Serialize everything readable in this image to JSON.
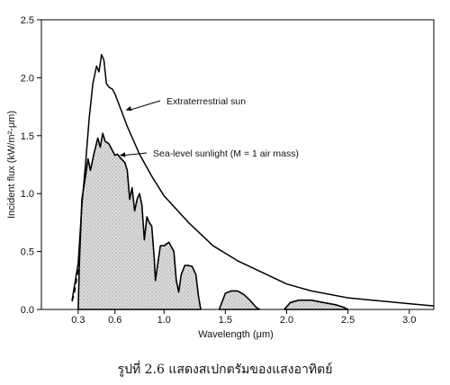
{
  "chart_data": {
    "type": "area",
    "ylabel": "Incident flux (kW/m²-μm)",
    "xlabel": "Wavelength (μm)",
    "xlim": [
      0.0,
      3.2
    ],
    "ylim": [
      0.0,
      2.5
    ],
    "xticks": [
      0.3,
      0.6,
      1.0,
      1.5,
      2.0,
      2.5,
      3.0
    ],
    "xtick_labels": [
      "0.3",
      "0.6",
      "1.0",
      "1.5",
      "2.0",
      "2.5",
      "3.0"
    ],
    "yticks": [
      0.0,
      0.5,
      1.0,
      1.5,
      2.0,
      2.5
    ],
    "ytick_labels": [
      "0.0",
      "0.5",
      "1.0",
      "1.5",
      "2.0",
      "2.5"
    ],
    "grid": false,
    "series": [
      {
        "name": "Extraterrestrial sun",
        "style": "line",
        "color": "#000000",
        "points": [
          [
            0.25,
            0.08
          ],
          [
            0.3,
            0.4
          ],
          [
            0.33,
            0.9
          ],
          [
            0.36,
            1.25
          ],
          [
            0.39,
            1.65
          ],
          [
            0.42,
            1.95
          ],
          [
            0.45,
            2.1
          ],
          [
            0.47,
            2.05
          ],
          [
            0.49,
            2.2
          ],
          [
            0.51,
            2.15
          ],
          [
            0.53,
            1.95
          ],
          [
            0.55,
            1.92
          ],
          [
            0.58,
            1.9
          ],
          [
            0.6,
            1.86
          ],
          [
            0.65,
            1.72
          ],
          [
            0.7,
            1.58
          ],
          [
            0.8,
            1.34
          ],
          [
            0.9,
            1.15
          ],
          [
            1.0,
            0.98
          ],
          [
            1.2,
            0.75
          ],
          [
            1.4,
            0.55
          ],
          [
            1.6,
            0.42
          ],
          [
            1.8,
            0.32
          ],
          [
            2.0,
            0.22
          ],
          [
            2.2,
            0.16
          ],
          [
            2.5,
            0.1
          ],
          [
            3.0,
            0.05
          ],
          [
            3.2,
            0.03
          ]
        ]
      },
      {
        "name": "Sea-level sunlight (M = 1 air mass)",
        "style": "filled",
        "color": "#000000",
        "fill": "#d6d6d6",
        "segments": [
          [
            [
              0.3,
              0.0
            ],
            [
              0.31,
              0.4
            ],
            [
              0.33,
              0.95
            ],
            [
              0.36,
              1.15
            ],
            [
              0.38,
              1.3
            ],
            [
              0.4,
              1.2
            ],
            [
              0.43,
              1.35
            ],
            [
              0.46,
              1.48
            ],
            [
              0.48,
              1.4
            ],
            [
              0.5,
              1.52
            ],
            [
              0.52,
              1.45
            ],
            [
              0.55,
              1.43
            ],
            [
              0.58,
              1.37
            ],
            [
              0.6,
              1.33
            ],
            [
              0.62,
              1.34
            ],
            [
              0.65,
              1.3
            ],
            [
              0.68,
              1.27
            ],
            [
              0.7,
              1.2
            ],
            [
              0.72,
              0.95
            ],
            [
              0.74,
              1.05
            ],
            [
              0.76,
              0.85
            ],
            [
              0.78,
              0.95
            ],
            [
              0.8,
              1.0
            ],
            [
              0.82,
              0.9
            ],
            [
              0.84,
              0.6
            ],
            [
              0.86,
              0.8
            ],
            [
              0.88,
              0.75
            ],
            [
              0.9,
              0.72
            ],
            [
              0.92,
              0.45
            ],
            [
              0.93,
              0.25
            ],
            [
              0.95,
              0.4
            ],
            [
              0.97,
              0.55
            ],
            [
              1.0,
              0.55
            ],
            [
              1.04,
              0.58
            ],
            [
              1.08,
              0.5
            ],
            [
              1.1,
              0.25
            ],
            [
              1.12,
              0.15
            ],
            [
              1.14,
              0.3
            ],
            [
              1.17,
              0.38
            ],
            [
              1.2,
              0.38
            ],
            [
              1.23,
              0.37
            ],
            [
              1.26,
              0.3
            ],
            [
              1.28,
              0.12
            ],
            [
              1.3,
              0.0
            ]
          ],
          [
            [
              1.45,
              0.0
            ],
            [
              1.5,
              0.14
            ],
            [
              1.55,
              0.16
            ],
            [
              1.6,
              0.16
            ],
            [
              1.65,
              0.13
            ],
            [
              1.7,
              0.08
            ],
            [
              1.75,
              0.02
            ],
            [
              1.78,
              0.0
            ]
          ],
          [
            [
              1.98,
              0.0
            ],
            [
              2.03,
              0.06
            ],
            [
              2.1,
              0.08
            ],
            [
              2.2,
              0.08
            ],
            [
              2.3,
              0.06
            ],
            [
              2.4,
              0.04
            ],
            [
              2.46,
              0.02
            ],
            [
              2.5,
              0.0
            ]
          ]
        ]
      },
      {
        "name": "",
        "style": "dashed",
        "color": "#000000",
        "points": [
          [
            0.25,
            0.07
          ],
          [
            0.27,
            0.15
          ],
          [
            0.29,
            0.28
          ],
          [
            0.31,
            0.4
          ]
        ]
      }
    ],
    "annotations": [
      {
        "text": "Extraterrestrial sun",
        "target_series": 0,
        "target": [
          0.65,
          1.72
        ]
      },
      {
        "text": "Sea-level sunlight (M = 1 air mass)",
        "target_series": 1,
        "target": [
          0.6,
          1.33
        ]
      }
    ]
  },
  "caption": "รูปที่ 2.6  แสดงสเปกตรัมของแสงอาทิตย์"
}
